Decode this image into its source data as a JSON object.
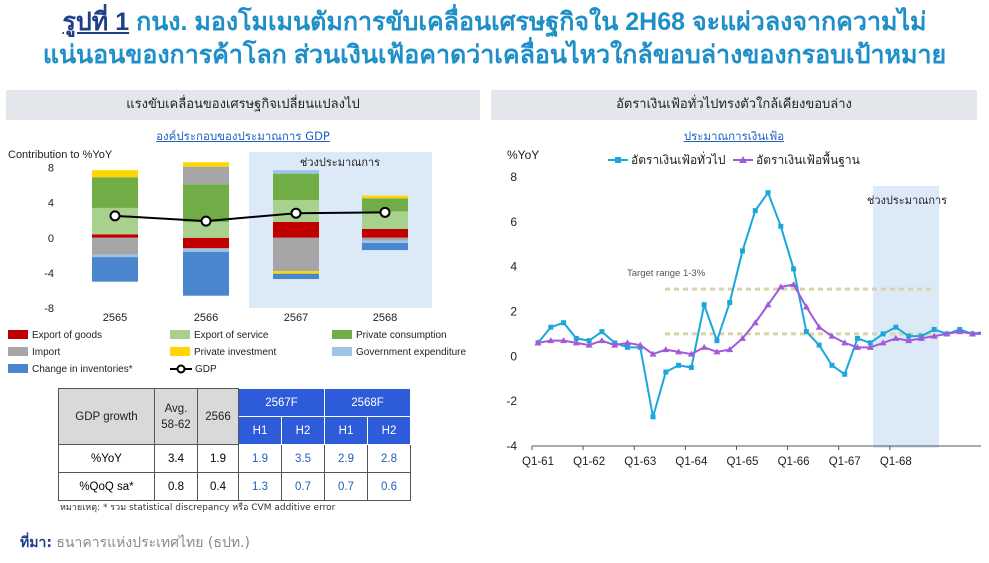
{
  "header": {
    "title_label": "รูปที่ 1",
    "title_line1": "กนง. มองโมเมนตัมการขับเคลื่อนเศรษฐกิจใน 2H68 จะแผ่วลงจากความไม่",
    "title_line2": "แน่นอนของการค้าโลก ส่วนเงินเฟ้อคาดว่าเคลื่อนไหวใกล้ขอบล่างของกรอบเป้าหมาย"
  },
  "left_panel": {
    "heading": "แรงขับเคลื่อนของเศรษฐกิจเปลี่ยนแปลงไป",
    "subtitle": "องค์ประกอบของประมาณการ GDP",
    "ylabel": "Contribution to %YoY",
    "forecast_label": "ช่วงประมาณการ",
    "table": {
      "row_header": "GDP growth",
      "avg_label": "Avg.\n58-62",
      "y2566_label": "2566",
      "f2567_label": "2567F",
      "f2568_label": "2568F",
      "h1": "H1",
      "h2": "H2",
      "rows": [
        {
          "label": "%YoY",
          "avg": "3.4",
          "y2566": "1.9",
          "a": "1.9",
          "b": "3.5",
          "c": "2.9",
          "d": "2.8"
        },
        {
          "label": "%QoQ sa*",
          "avg": "0.8",
          "y2566": "0.4",
          "a": "1.3",
          "b": "0.7",
          "c": "0.7",
          "d": "0.6"
        }
      ]
    },
    "note": "หมายเหตุ: * รวม statistical discrepancy หรือ CVM additive error"
  },
  "right_panel": {
    "heading": "อัตราเงินเฟ้อทั่วไปทรงตัวใกล้เคียงขอบล่าง",
    "subtitle": "ประมาณการเงินเฟ้อ",
    "forecast_label": "ช่วงประมาณการ",
    "target_label": "Target range 1-3%"
  },
  "source": {
    "label": "ที่มา:",
    "text": "ธนาคารแห่งประเทศไทย (ธปท.)"
  },
  "chart_data": [
    {
      "type": "bar",
      "stacked": true,
      "ylabel": "Contribution to %YoY",
      "ylim": [
        -8,
        10
      ],
      "yticks": [
        -8,
        -4,
        0,
        4,
        8
      ],
      "categories": [
        "2565",
        "2566",
        "2567",
        "2568"
      ],
      "forecast_categories": [
        "2567",
        "2568"
      ],
      "series": [
        {
          "name": "Export of goods",
          "color": "#c00000",
          "values": [
            0.4,
            -1.2,
            1.8,
            1.0
          ]
        },
        {
          "name": "Export of service",
          "color": "#a9d18e",
          "values": [
            3.0,
            1.8,
            2.5,
            2.0
          ]
        },
        {
          "name": "Private consumption",
          "color": "#70ad47",
          "values": [
            3.5,
            4.3,
            3.0,
            1.5
          ]
        },
        {
          "name": "Import",
          "color": "#a6a6a6",
          "values": [
            -1.9,
            2.0,
            -3.8,
            -0.3
          ]
        },
        {
          "name": "Private investment",
          "color": "#ffd700",
          "values": [
            0.8,
            0.5,
            -0.3,
            0.3
          ]
        },
        {
          "name": "Government expenditure",
          "color": "#9dc3e6",
          "values": [
            -0.3,
            -0.4,
            0.4,
            -0.3
          ]
        },
        {
          "name": "Change in inventories*",
          "color": "#4a86d0",
          "values": [
            -2.8,
            -5.0,
            -0.6,
            -0.8
          ]
        }
      ],
      "line": {
        "name": "GDP",
        "color": "#000000",
        "values": [
          2.5,
          1.9,
          2.8,
          2.9
        ]
      }
    },
    {
      "type": "line",
      "ylabel": "%YoY",
      "ylim": [
        -4,
        8
      ],
      "yticks": [
        -4,
        -2,
        0,
        2,
        4,
        6,
        8
      ],
      "x_tick_labels": [
        "Q1-61",
        "Q1-62",
        "Q1-63",
        "Q1-64",
        "Q1-65",
        "Q1-66",
        "Q1-67",
        "Q1-68"
      ],
      "target_range": [
        1,
        3
      ],
      "forecast_start_index": 32,
      "series": [
        {
          "name": "อัตราเงินเฟ้อทั่วไป",
          "color": "#1aa7dc",
          "marker": "square",
          "values": [
            0.6,
            1.3,
            1.5,
            0.8,
            0.7,
            1.1,
            0.6,
            0.4,
            0.4,
            -2.7,
            -0.7,
            -0.4,
            -0.5,
            2.3,
            0.7,
            2.4,
            4.7,
            6.5,
            7.3,
            5.8,
            3.9,
            1.1,
            0.5,
            -0.4,
            -0.8,
            0.8,
            0.6,
            1.0,
            1.3,
            0.9,
            0.9,
            1.2,
            1.0,
            1.2,
            1.0,
            1.1
          ]
        },
        {
          "name": "อัตราเงินเฟ้อพื้นฐาน",
          "color": "#a25ad9",
          "marker": "triangle",
          "values": [
            0.6,
            0.7,
            0.7,
            0.6,
            0.5,
            0.7,
            0.5,
            0.6,
            0.5,
            0.1,
            0.3,
            0.2,
            0.1,
            0.4,
            0.2,
            0.3,
            0.8,
            1.5,
            2.3,
            3.1,
            3.2,
            2.2,
            1.3,
            0.9,
            0.6,
            0.4,
            0.4,
            0.6,
            0.8,
            0.7,
            0.8,
            0.9,
            1.0,
            1.1,
            1.0,
            1.0
          ]
        }
      ]
    }
  ]
}
